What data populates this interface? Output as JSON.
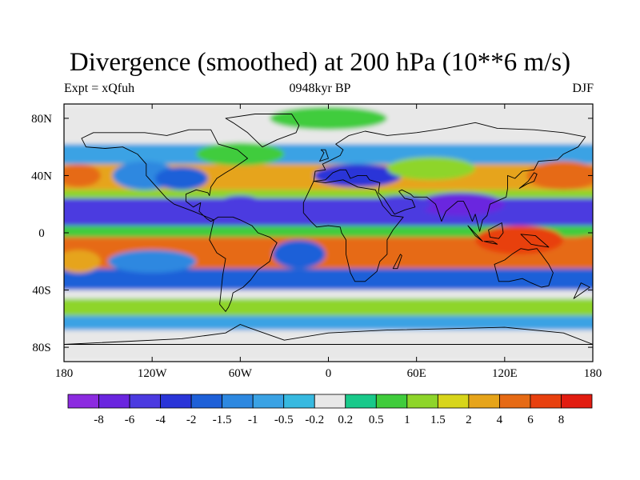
{
  "title": "Divergence (smoothed) at 200 hPa (10**6 m/s)",
  "left_subtitle": "Expt = xQfuh",
  "center_subtitle": "0948kyr BP",
  "right_subtitle": "DJF",
  "map": {
    "projection": "cylindrical equidistant",
    "lon_range": [
      -180,
      180
    ],
    "lat_range": [
      -90,
      90
    ],
    "lon_ticks": [
      {
        "value": -180,
        "label": "180"
      },
      {
        "value": -120,
        "label": "120W"
      },
      {
        "value": -60,
        "label": "60W"
      },
      {
        "value": 0,
        "label": "0"
      },
      {
        "value": 60,
        "label": "60E"
      },
      {
        "value": 120,
        "label": "120E"
      },
      {
        "value": 180,
        "label": "180"
      }
    ],
    "lat_ticks": [
      {
        "value": 80,
        "label": "80N"
      },
      {
        "value": 40,
        "label": "40N"
      },
      {
        "value": 0,
        "label": "0"
      },
      {
        "value": -40,
        "label": "40S"
      },
      {
        "value": -80,
        "label": "80S"
      }
    ]
  },
  "colorbar": {
    "levels": [
      "-8",
      "-6",
      "-4",
      "-2",
      "-1.5",
      "-1",
      "-0.5",
      "-0.2",
      "0.2",
      "0.5",
      "1",
      "1.5",
      "2",
      "4",
      "6",
      "8"
    ],
    "colors": [
      "#8c2be0",
      "#6a25df",
      "#4b3ae0",
      "#2a35d8",
      "#1e60d8",
      "#2d88e0",
      "#3aa2e4",
      "#37b9e0",
      "#e8e8e8",
      "#19c98a",
      "#40cc3c",
      "#8ed52a",
      "#d8d51a",
      "#e6a41a",
      "#e66a14",
      "#e8400e",
      "#e21c10"
    ]
  },
  "field_bands": [
    {
      "lat_from": 90,
      "lat_to": 62,
      "value": 0
    },
    {
      "lat_from": 62,
      "lat_to": 48,
      "value": -0.7
    },
    {
      "lat_from": 48,
      "lat_to": 30,
      "value": 2.5
    },
    {
      "lat_from": 30,
      "lat_to": 24,
      "value": 1
    },
    {
      "lat_from": 24,
      "lat_to": 5,
      "value": -5
    },
    {
      "lat_from": 5,
      "lat_to": -3,
      "value": 0.7
    },
    {
      "lat_from": -3,
      "lat_to": -25,
      "value": 4.5
    },
    {
      "lat_from": -25,
      "lat_to": -40,
      "value": -1.8
    },
    {
      "lat_from": -40,
      "lat_to": -46,
      "value": 0
    },
    {
      "lat_from": -46,
      "lat_to": -58,
      "value": 1
    },
    {
      "lat_from": -58,
      "lat_to": -68,
      "value": -0.8
    },
    {
      "lat_from": -68,
      "lat_to": -90,
      "value": 0
    }
  ],
  "field_blobs": [
    {
      "lon": -125,
      "lat": 40,
      "rx": 22,
      "ry": 10,
      "value": -1.2
    },
    {
      "lon": -100,
      "lat": 38,
      "rx": 18,
      "ry": 8,
      "value": -2
    },
    {
      "lon": -60,
      "lat": 55,
      "rx": 30,
      "ry": 8,
      "value": 0.7
    },
    {
      "lon": 20,
      "lat": 40,
      "rx": 30,
      "ry": 8,
      "value": -2.5
    },
    {
      "lon": 70,
      "lat": 45,
      "rx": 30,
      "ry": 8,
      "value": 1
    },
    {
      "lon": 160,
      "lat": 40,
      "rx": 25,
      "ry": 10,
      "value": 4
    },
    {
      "lon": -170,
      "lat": 40,
      "rx": 15,
      "ry": 8,
      "value": 4
    },
    {
      "lon": -60,
      "lat": -12,
      "rx": 15,
      "ry": 8,
      "value": 5
    },
    {
      "lon": 25,
      "lat": -15,
      "rx": 12,
      "ry": 8,
      "value": 5
    },
    {
      "lon": 130,
      "lat": -5,
      "rx": 30,
      "ry": 10,
      "value": 6
    },
    {
      "lon": -20,
      "lat": -15,
      "rx": 18,
      "ry": 10,
      "value": -2
    },
    {
      "lon": -120,
      "lat": -20,
      "rx": 30,
      "ry": 8,
      "value": -1.5
    },
    {
      "lon": -170,
      "lat": -20,
      "rx": 15,
      "ry": 8,
      "value": 2
    },
    {
      "lon": 180,
      "lat": -10,
      "rx": 20,
      "ry": 8,
      "value": 4
    },
    {
      "lon": -60,
      "lat": 20,
      "rx": 15,
      "ry": 6,
      "value": -6
    },
    {
      "lon": 90,
      "lat": 20,
      "rx": 30,
      "ry": 8,
      "value": -7
    },
    {
      "lon": 50,
      "lat": 20,
      "rx": 20,
      "ry": 6,
      "value": -5
    },
    {
      "lon": 0,
      "lat": 80,
      "rx": 40,
      "ry": 8,
      "value": 0.5
    }
  ]
}
